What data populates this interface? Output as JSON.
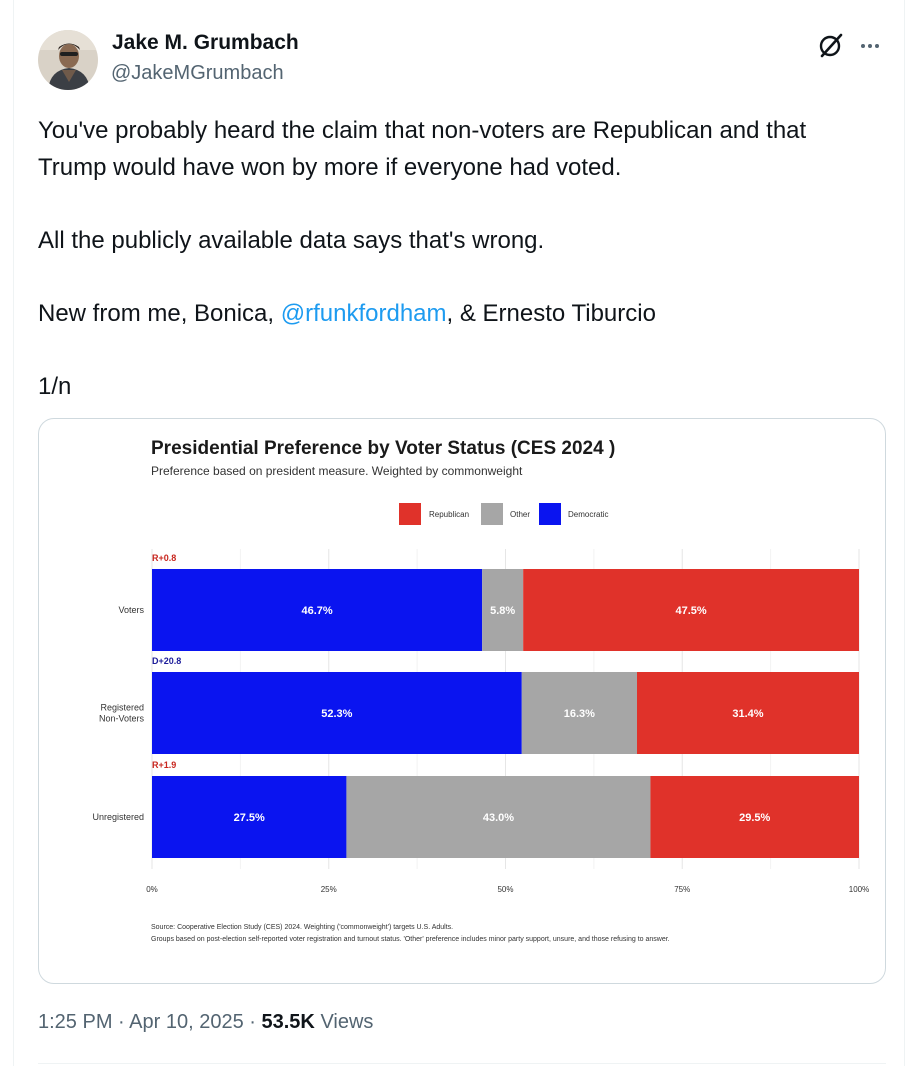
{
  "author": {
    "name": "Jake M. Grumbach",
    "handle": "@JakeMGrumbach"
  },
  "tweet": {
    "line1": "You've probably heard the claim that non-voters are Republican and that",
    "line2": "Trump would have won by more if everyone had voted.",
    "line3": "All the publicly available data says that's wrong.",
    "line4_prefix": "New from me, Bonica, ",
    "mention": "@rfunkfordham",
    "line4_suffix": ", & Ernesto Tiburcio",
    "line5": "1/n"
  },
  "meta": {
    "time": "1:25 PM",
    "separator": "·",
    "date": "Apr 10, 2025",
    "views_count": "53.5K",
    "views_label": "Views"
  },
  "chart_data": {
    "type": "bar",
    "orientation": "horizontal-stacked-100",
    "title": "Presidential Preference by Voter Status (CES 2024 )",
    "subtitle": "Preference based on president measure. Weighted by commonweight",
    "legend": [
      {
        "name": "Republican",
        "color": "#e0322a"
      },
      {
        "name": "Other",
        "color": "#a6a6a6"
      },
      {
        "name": "Democratic",
        "color": "#0a14f0"
      }
    ],
    "categories": [
      "Voters",
      "Registered Non-Voters",
      "Unregistered"
    ],
    "category_lines": [
      [
        "Voters"
      ],
      [
        "Registered",
        "Non-Voters"
      ],
      [
        "Unregistered"
      ]
    ],
    "margins": [
      "R+0.8",
      "D+20.8",
      "R+1.9"
    ],
    "margin_colors": [
      "#c8261e",
      "#1b1b9a",
      "#c8261e"
    ],
    "series": [
      {
        "name": "Democratic",
        "values": [
          46.7,
          52.3,
          27.5
        ],
        "labels": [
          "46.7%",
          "52.3%",
          "27.5%"
        ]
      },
      {
        "name": "Other",
        "values": [
          5.8,
          16.3,
          43.0
        ],
        "labels": [
          "5.8%",
          "16.3%",
          "43.0%"
        ]
      },
      {
        "name": "Republican",
        "values": [
          47.5,
          31.4,
          29.5
        ],
        "labels": [
          "47.5%",
          "31.4%",
          "29.5%"
        ]
      }
    ],
    "xlim": [
      0,
      100
    ],
    "xticks": [
      0,
      25,
      50,
      75,
      100
    ],
    "xtick_labels": [
      "0%",
      "25%",
      "50%",
      "75%",
      "100%"
    ],
    "source_line1": "Source: Cooperative Election Study (CES) 2024. Weighting ('commonweight') targets U.S. Adults.",
    "source_line2": "Groups based on post-election self-reported voter registration and turnout status. 'Other' preference includes minor party support, unsure, and those refusing to answer."
  }
}
